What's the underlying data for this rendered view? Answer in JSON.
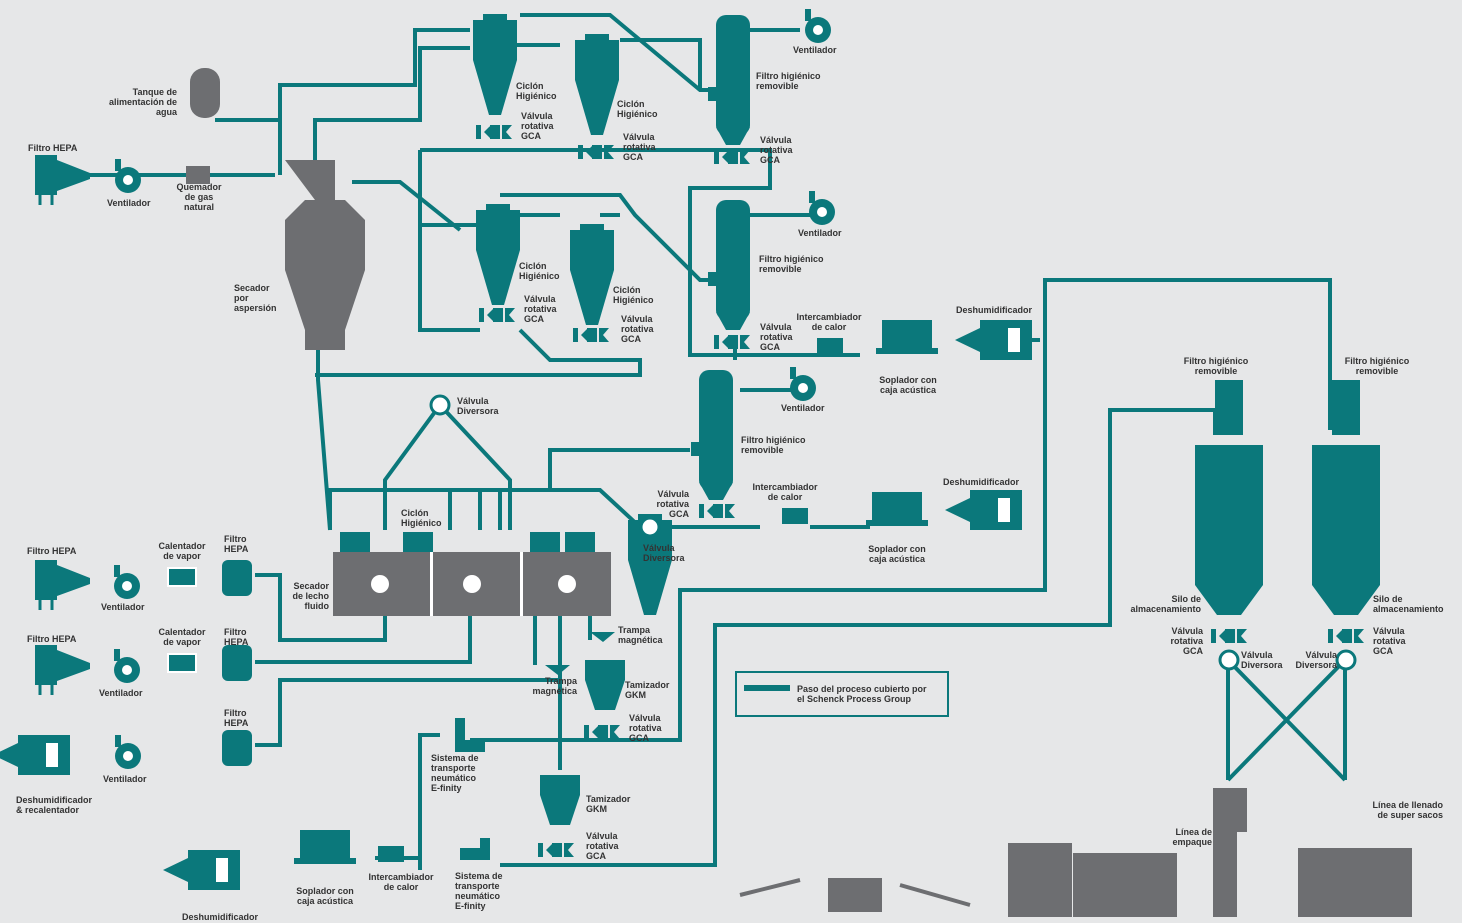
{
  "diagram": {
    "labels": [
      {
        "lines": [
          "Tanque de",
          "alimentación de",
          "agua"
        ]
      },
      {
        "lines": [
          "Filtro HEPA"
        ]
      },
      {
        "lines": [
          "Ventilador"
        ]
      },
      {
        "lines": [
          "Quemador",
          "de gas",
          "natural"
        ]
      },
      {
        "lines": [
          "Secador",
          "por",
          "aspersión"
        ]
      },
      {
        "lines": [
          "Ciclón",
          "Higiénico"
        ]
      },
      {
        "lines": [
          "Válvula",
          "rotativa",
          "GCA"
        ]
      },
      {
        "lines": [
          "Ciclón",
          "Higiénico"
        ]
      },
      {
        "lines": [
          "Válvula",
          "rotativa",
          "GCA"
        ]
      },
      {
        "lines": [
          "Ventilador"
        ]
      },
      {
        "lines": [
          "Filtro higiénico",
          "removible"
        ]
      },
      {
        "lines": [
          "Válvula",
          "rotativa",
          "GCA"
        ]
      },
      {
        "lines": [
          "Ciclón",
          "Higiénico"
        ]
      },
      {
        "lines": [
          "Válvula",
          "rotativa",
          "GCA"
        ]
      },
      {
        "lines": [
          "Ciclón",
          "Higiénico"
        ]
      },
      {
        "lines": [
          "Válvula",
          "rotativa",
          "GCA"
        ]
      },
      {
        "lines": [
          "Ventilador"
        ]
      },
      {
        "lines": [
          "Filtro higiénico",
          "removible"
        ]
      },
      {
        "lines": [
          "Válvula",
          "rotativa",
          "GCA"
        ]
      },
      {
        "lines": [
          "Intercambiador",
          "de calor"
        ]
      },
      {
        "lines": [
          "Soplador con",
          "caja acústica"
        ]
      },
      {
        "lines": [
          "Deshumidificador"
        ]
      },
      {
        "lines": [
          "Válvula",
          "Diversora"
        ]
      },
      {
        "lines": [
          "Ventilador"
        ]
      },
      {
        "lines": [
          "Filtro higiénico",
          "removible"
        ]
      },
      {
        "lines": [
          "Válvula",
          "rotativa",
          "GCA"
        ]
      },
      {
        "lines": [
          "Intercambiador",
          "de calor"
        ]
      },
      {
        "lines": [
          "Deshumidificador"
        ]
      },
      {
        "lines": [
          "Soplador con",
          "caja acústica"
        ]
      },
      {
        "lines": [
          "Válvula",
          "Diversora"
        ]
      },
      {
        "lines": [
          "Ciclón",
          "Higiénico"
        ]
      },
      {
        "lines": [
          "Secador",
          "de lecho",
          "fluido"
        ]
      },
      {
        "lines": [
          "Filtro HEPA"
        ]
      },
      {
        "lines": [
          "Calentador",
          "de vapor"
        ]
      },
      {
        "lines": [
          "Filtro",
          "HEPA"
        ]
      },
      {
        "lines": [
          "Ventilador"
        ]
      },
      {
        "lines": [
          "Filtro HEPA"
        ]
      },
      {
        "lines": [
          "Calentador",
          "de vapor"
        ]
      },
      {
        "lines": [
          "Filtro",
          "HEPA"
        ]
      },
      {
        "lines": [
          "Ventilador"
        ]
      },
      {
        "lines": [
          "Filtro",
          "HEPA"
        ]
      },
      {
        "lines": [
          "Ventilador"
        ]
      },
      {
        "lines": [
          "Deshumidificador",
          "& recalentador"
        ]
      },
      {
        "lines": [
          "Trampa",
          "magnética"
        ]
      },
      {
        "lines": [
          "Trampa",
          "magnética"
        ]
      },
      {
        "lines": [
          "Tamizador",
          "GKM"
        ]
      },
      {
        "lines": [
          "Válvula",
          "rotativa",
          "GCA"
        ]
      },
      {
        "lines": [
          "Sistema de",
          "transporte",
          "neumático",
          "E-finity"
        ]
      },
      {
        "lines": [
          "Tamizador",
          "GKM"
        ]
      },
      {
        "lines": [
          "Válvula",
          "rotativa",
          "GCA"
        ]
      },
      {
        "lines": [
          "Soplador con",
          "caja acústica"
        ]
      },
      {
        "lines": [
          "Intercambiador",
          "de calor"
        ]
      },
      {
        "lines": [
          "Sistema de",
          "transporte",
          "neumático",
          "E-finity"
        ]
      },
      {
        "lines": [
          "Deshumidificador"
        ]
      },
      {
        "lines": [
          "Filtro higiénico",
          "removible"
        ]
      },
      {
        "lines": [
          "Filtro higiénico",
          "removible"
        ]
      },
      {
        "lines": [
          "Silo de",
          "almacenamiento"
        ]
      },
      {
        "lines": [
          "Silo de",
          "almacenamiento"
        ]
      },
      {
        "lines": [
          "Válvula",
          "rotativa",
          "GCA"
        ]
      },
      {
        "lines": [
          "Válvula",
          "Diversora"
        ]
      },
      {
        "lines": [
          "Válvula",
          "Diversora"
        ]
      },
      {
        "lines": [
          "Válvula",
          "rotativa",
          "GCA"
        ]
      },
      {
        "lines": [
          "Línea de",
          "empaque"
        ]
      },
      {
        "lines": [
          "Línea de llenado",
          "de super sacos"
        ]
      }
    ],
    "legend": {
      "lines": [
        "Paso del proceso cubierto por",
        "el Schenck Process Group"
      ]
    }
  }
}
